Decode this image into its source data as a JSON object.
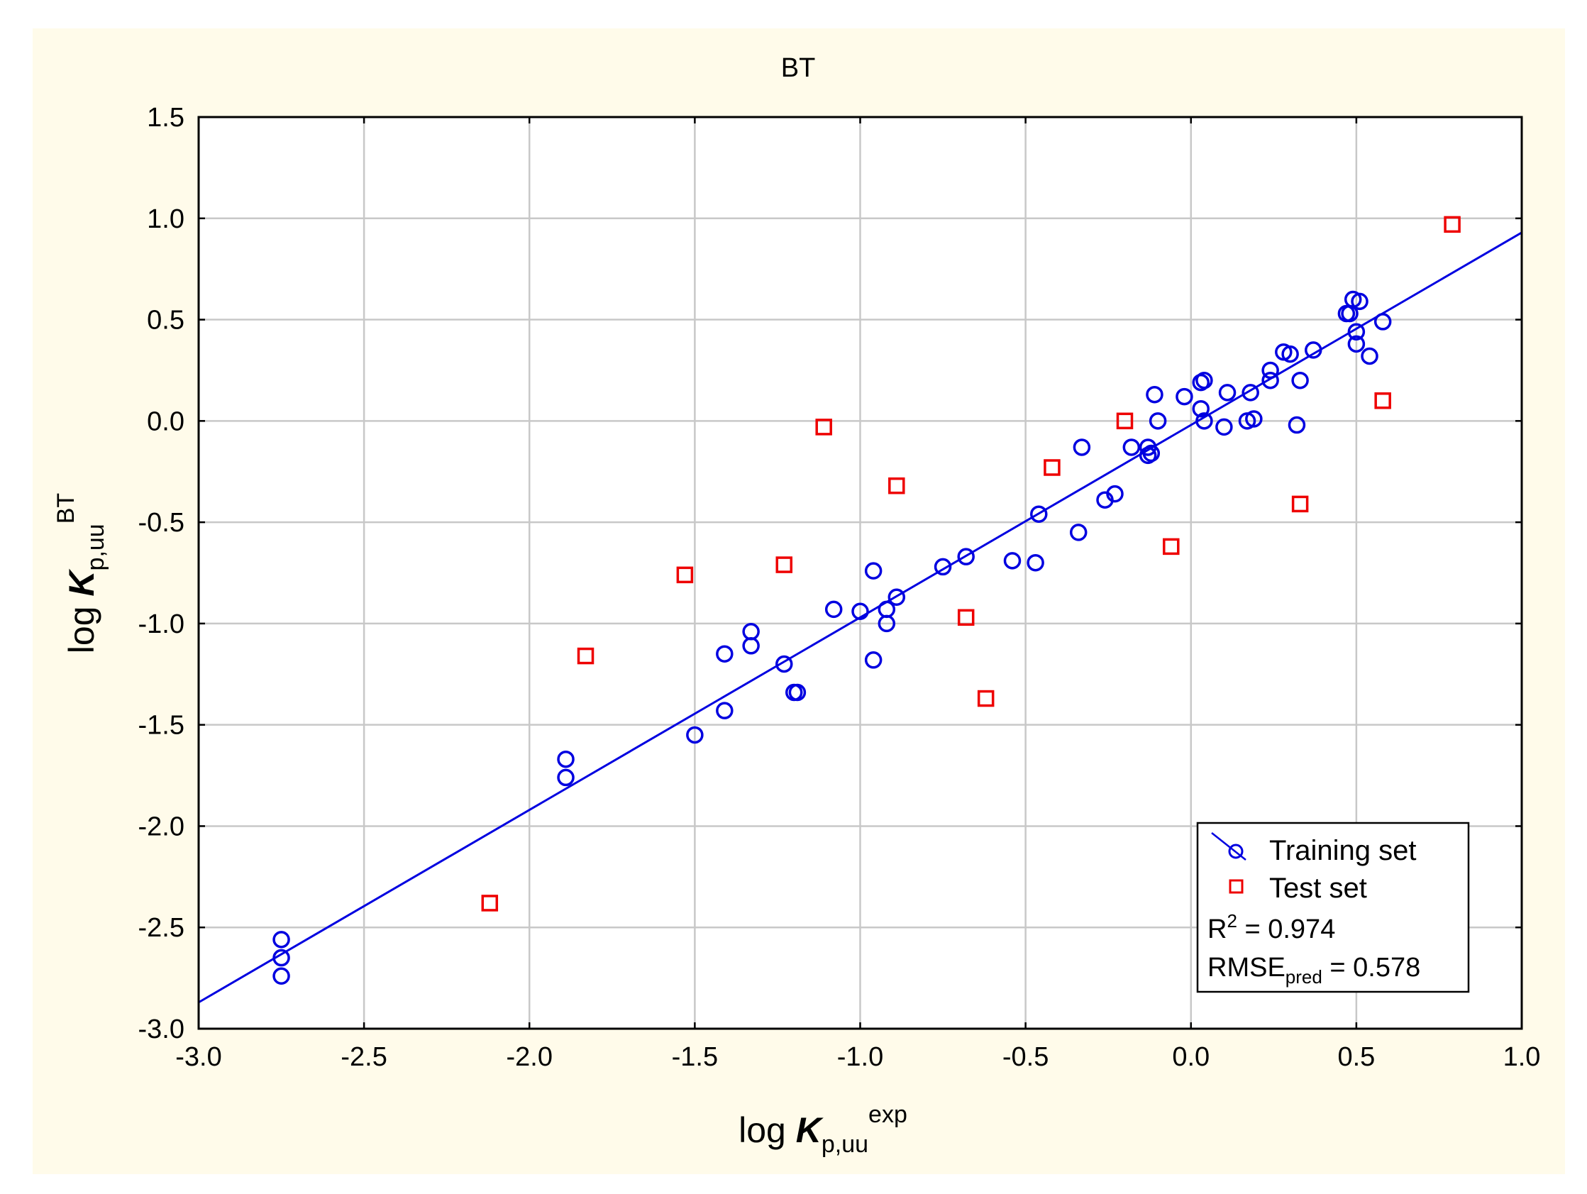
{
  "colors": {
    "panel_background": "#fffbea",
    "plot_background": "#ffffff",
    "grid": "#c8c8c8",
    "training": "#0000e0",
    "test": "#ee0000"
  },
  "chart_data": {
    "type": "scatter",
    "title": "BT",
    "xlabel": {
      "base": "log ",
      "symbol": "K",
      "subscript": "p,uu",
      "superscript": "exp"
    },
    "ylabel": {
      "base": "log ",
      "symbol": "K",
      "subscript": "p,uu",
      "superscript": "BT"
    },
    "xlim": [
      -3.0,
      1.0
    ],
    "ylim": [
      -3.0,
      1.5
    ],
    "xticks": [
      "-3.0",
      "-2.5",
      "-2.0",
      "-1.5",
      "-1.0",
      "-0.5",
      "0.0",
      "0.5",
      "1.0"
    ],
    "yticks": [
      "1.5",
      "1.0",
      "0.5",
      "0.0",
      "-0.5",
      "-1.0",
      "-1.5",
      "-2.0",
      "-2.5",
      "-3.0"
    ],
    "grid": true,
    "legend_position": "bottom-right",
    "legend": [
      {
        "label": "Training set",
        "marker": "circle",
        "line": true
      },
      {
        "label": "Test set",
        "marker": "square",
        "line": false
      }
    ],
    "stats": {
      "r2_label": "R",
      "r2_sup": "2",
      "r2_value": " = 0.974",
      "rmse_label": "RMSE",
      "rmse_sub": "pred",
      "rmse_value": " = 0.578"
    },
    "fit_line": {
      "x": [
        -3.0,
        1.0
      ],
      "y": [
        -2.87,
        0.93
      ]
    },
    "series": [
      {
        "name": "Training set",
        "marker": "circle",
        "points": [
          [
            -2.75,
            -2.56
          ],
          [
            -2.75,
            -2.65
          ],
          [
            -2.75,
            -2.74
          ],
          [
            -1.89,
            -1.67
          ],
          [
            -1.89,
            -1.76
          ],
          [
            -1.5,
            -1.55
          ],
          [
            -1.41,
            -1.15
          ],
          [
            -1.41,
            -1.43
          ],
          [
            -1.33,
            -1.04
          ],
          [
            -1.33,
            -1.11
          ],
          [
            -1.23,
            -1.2
          ],
          [
            -1.2,
            -1.34
          ],
          [
            -1.19,
            -1.34
          ],
          [
            -1.08,
            -0.93
          ],
          [
            -1.0,
            -0.94
          ],
          [
            -0.96,
            -0.74
          ],
          [
            -0.96,
            -1.18
          ],
          [
            -0.92,
            -0.93
          ],
          [
            -0.92,
            -1.0
          ],
          [
            -0.89,
            -0.87
          ],
          [
            -0.75,
            -0.72
          ],
          [
            -0.68,
            -0.67
          ],
          [
            -0.54,
            -0.69
          ],
          [
            -0.47,
            -0.7
          ],
          [
            -0.46,
            -0.46
          ],
          [
            -0.34,
            -0.55
          ],
          [
            -0.33,
            -0.13
          ],
          [
            -0.26,
            -0.39
          ],
          [
            -0.23,
            -0.36
          ],
          [
            -0.18,
            -0.13
          ],
          [
            -0.13,
            -0.17
          ],
          [
            -0.13,
            -0.13
          ],
          [
            -0.12,
            -0.16
          ],
          [
            -0.11,
            0.13
          ],
          [
            -0.1,
            0.0
          ],
          [
            -0.02,
            0.12
          ],
          [
            0.03,
            0.19
          ],
          [
            0.04,
            0.2
          ],
          [
            0.03,
            0.06
          ],
          [
            0.04,
            0.0
          ],
          [
            0.1,
            -0.03
          ],
          [
            0.11,
            0.14
          ],
          [
            0.17,
            0.0
          ],
          [
            0.18,
            0.14
          ],
          [
            0.19,
            0.01
          ],
          [
            0.24,
            0.25
          ],
          [
            0.24,
            0.2
          ],
          [
            0.28,
            0.34
          ],
          [
            0.3,
            0.33
          ],
          [
            0.32,
            -0.02
          ],
          [
            0.33,
            0.2
          ],
          [
            0.37,
            0.35
          ],
          [
            0.47,
            0.53
          ],
          [
            0.48,
            0.53
          ],
          [
            0.49,
            0.6
          ],
          [
            0.51,
            0.59
          ],
          [
            0.5,
            0.44
          ],
          [
            0.5,
            0.38
          ],
          [
            0.54,
            0.32
          ],
          [
            0.58,
            0.49
          ]
        ]
      },
      {
        "name": "Test set",
        "marker": "square",
        "points": [
          [
            -2.12,
            -2.38
          ],
          [
            -1.83,
            -1.16
          ],
          [
            -1.53,
            -0.76
          ],
          [
            -1.23,
            -0.71
          ],
          [
            -1.11,
            -0.03
          ],
          [
            -0.89,
            -0.32
          ],
          [
            -0.68,
            -0.97
          ],
          [
            -0.62,
            -1.37
          ],
          [
            -0.42,
            -0.23
          ],
          [
            -0.2,
            0.0
          ],
          [
            -0.06,
            -0.62
          ],
          [
            0.33,
            -0.41
          ],
          [
            0.58,
            0.1
          ],
          [
            0.79,
            0.97
          ]
        ]
      }
    ]
  }
}
